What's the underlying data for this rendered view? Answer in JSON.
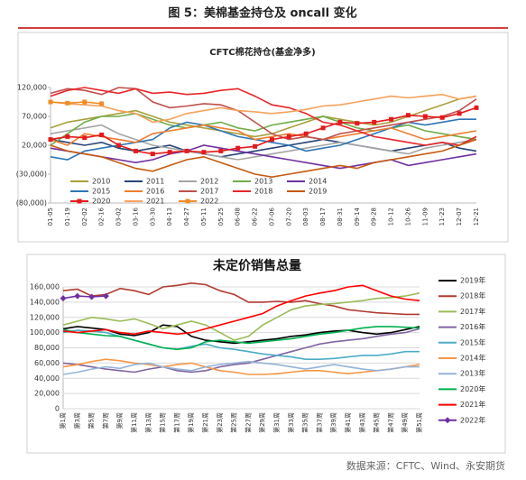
{
  "header": {
    "title": "图 5：美棉基金持仓及 oncall 变化"
  },
  "source": "数据来源：CFTC、Wind、永安期货",
  "chart_data": [
    {
      "type": "line",
      "title": "CFTC棉花持仓(基金净多)",
      "grid": false,
      "categories": [
        "01-05",
        "01-19",
        "02-02",
        "02-16",
        "03-02",
        "03-16",
        "03-30",
        "04-13",
        "04-27",
        "05-11",
        "05-25",
        "06-08",
        "06-22",
        "07-06",
        "07-20",
        "08-03",
        "08-17",
        "08-31",
        "09-14",
        "09-28",
        "10-12",
        "10-26",
        "11-09",
        "11-23",
        "12-07",
        "12-21"
      ],
      "ylim": [
        -80000,
        120000
      ],
      "yticks": [
        {
          "value": -80000,
          "label": "(80,000)"
        },
        {
          "value": -30000,
          "label": "(30,000)"
        },
        {
          "value": 20000,
          "label": "20,000"
        },
        {
          "value": 70000,
          "label": "70,000"
        },
        {
          "value": 120000,
          "label": "120,000"
        }
      ],
      "series": [
        {
          "name": "2010",
          "color": "#a89f3c",
          "values": [
            50000,
            60000,
            65000,
            70000,
            75000,
            80000,
            70000,
            60000,
            55000,
            50000,
            45000,
            40000,
            35000,
            40000,
            50000,
            60000,
            70000,
            65000,
            60000,
            55000,
            60000,
            70000,
            80000,
            90000,
            100000,
            105000
          ]
        },
        {
          "name": "2011",
          "color": "#264478",
          "values": [
            30000,
            25000,
            20000,
            25000,
            15000,
            10000,
            15000,
            20000,
            10000,
            5000,
            0,
            5000,
            10000,
            15000,
            20000,
            25000,
            30000,
            25000,
            20000,
            15000,
            10000,
            15000,
            20000,
            25000,
            15000,
            10000
          ]
        },
        {
          "name": "2012",
          "color": "#a5a5a5",
          "values": [
            40000,
            45000,
            50000,
            55000,
            40000,
            30000,
            20000,
            15000,
            10000,
            5000,
            0,
            -5000,
            0,
            5000,
            10000,
            15000,
            20000,
            25000,
            20000,
            15000,
            10000,
            5000,
            15000,
            20000,
            25000,
            30000
          ]
        },
        {
          "name": "2013",
          "color": "#70ad47",
          "values": [
            20000,
            40000,
            60000,
            70000,
            70000,
            75000,
            65000,
            55000,
            50000,
            55000,
            60000,
            50000,
            45000,
            55000,
            60000,
            65000,
            70000,
            60000,
            50000,
            45000,
            50000,
            55000,
            45000,
            40000,
            35000,
            30000
          ]
        },
        {
          "name": "2014",
          "color": "#7030a0",
          "values": [
            15000,
            10000,
            5000,
            0,
            -5000,
            -10000,
            -5000,
            5000,
            10000,
            20000,
            15000,
            10000,
            5000,
            0,
            -5000,
            -10000,
            -15000,
            -20000,
            -15000,
            -10000,
            -5000,
            -15000,
            -10000,
            -5000,
            0,
            5000
          ]
        },
        {
          "name": "2015",
          "color": "#2e75b6",
          "values": [
            0,
            -5000,
            10000,
            15000,
            20000,
            25000,
            30000,
            50000,
            60000,
            55000,
            45000,
            35000,
            30000,
            25000,
            20000,
            10000,
            15000,
            20000,
            30000,
            40000,
            50000,
            60000,
            55000,
            60000,
            65000,
            65000
          ]
        },
        {
          "name": "2016",
          "color": "#ed7d31",
          "values": [
            30000,
            20000,
            40000,
            35000,
            30000,
            25000,
            40000,
            45000,
            50000,
            55000,
            50000,
            45000,
            30000,
            35000,
            40000,
            35000,
            30000,
            35000,
            40000,
            45000,
            50000,
            40000,
            30000,
            35000,
            40000,
            45000
          ]
        },
        {
          "name": "2017",
          "color": "#c0504d",
          "values": [
            110000,
            118000,
            115000,
            108000,
            120000,
            118000,
            95000,
            85000,
            88000,
            92000,
            90000,
            80000,
            60000,
            40000,
            30000,
            35000,
            30000,
            40000,
            45000,
            50000,
            55000,
            60000,
            65000,
            70000,
            80000,
            100000
          ]
        },
        {
          "name": "2018",
          "color": "#e8262a",
          "values": [
            105000,
            115000,
            120000,
            115000,
            110000,
            118000,
            110000,
            112000,
            108000,
            110000,
            115000,
            118000,
            105000,
            90000,
            85000,
            75000,
            60000,
            55000,
            45000,
            35000,
            30000,
            25000,
            20000,
            25000,
            20000,
            35000
          ]
        },
        {
          "name": "2019",
          "color": "#c55a11",
          "values": [
            20000,
            10000,
            5000,
            0,
            -10000,
            -20000,
            -25000,
            -15000,
            -5000,
            0,
            -10000,
            -20000,
            -30000,
            -35000,
            -30000,
            -25000,
            -20000,
            -15000,
            -20000,
            -10000,
            -5000,
            0,
            5000,
            10000,
            20000,
            30000
          ]
        },
        {
          "name": "2020",
          "color": "#e31a1c",
          "marker": "square",
          "values": [
            30000,
            35000,
            33000,
            38000,
            20000,
            10000,
            5000,
            8000,
            10000,
            8000,
            10000,
            15000,
            18000,
            30000,
            35000,
            40000,
            50000,
            60000,
            58000,
            60000,
            65000,
            72000,
            70000,
            68000,
            75000,
            85000
          ]
        },
        {
          "name": "2021",
          "color": "#f4a25c",
          "values": [
            95000,
            92000,
            90000,
            88000,
            80000,
            75000,
            60000,
            65000,
            75000,
            80000,
            85000,
            80000,
            78000,
            75000,
            78000,
            82000,
            88000,
            90000,
            95000,
            100000,
            105000,
            102000,
            105000,
            108000,
            100000,
            105000
          ]
        },
        {
          "name": "2022",
          "color": "#f08c28",
          "marker": "square",
          "values": [
            95000,
            93000,
            95000,
            92000,
            null,
            null,
            null,
            null,
            null,
            null,
            null,
            null,
            null,
            null,
            null,
            null,
            null,
            null,
            null,
            null,
            null,
            null,
            null,
            null,
            null,
            null
          ]
        }
      ]
    },
    {
      "type": "line",
      "title": "未定价销售总量",
      "grid": true,
      "categories": [
        "第1周",
        "第3周",
        "第5周",
        "第7周",
        "第9周",
        "第11周",
        "第13周",
        "第15周",
        "第17周",
        "第19周",
        "第21周",
        "第23周",
        "第25周",
        "第27周",
        "第29周",
        "第31周",
        "第33周",
        "第35周",
        "第37周",
        "第39周",
        "第41周",
        "第43周",
        "第45周",
        "第47周",
        "第49周",
        "第51周"
      ],
      "ylim": [
        0,
        160000
      ],
      "yticks": [
        0,
        {
          "value": 20000,
          "label": "20,000"
        },
        {
          "value": 40000,
          "label": "40,000"
        },
        {
          "value": 60000,
          "label": "60,000"
        },
        {
          "value": 80000,
          "label": "80,000"
        },
        {
          "value": 100000,
          "label": "100,000"
        },
        {
          "value": 120000,
          "label": "120,000"
        },
        {
          "value": 140000,
          "label": "140,000"
        },
        {
          "value": 160000,
          "label": "160,000"
        }
      ],
      "series": [
        {
          "name": "2019年",
          "color": "#000000",
          "values": [
            105000,
            108000,
            106000,
            104000,
            98000,
            96000,
            100000,
            110000,
            108000,
            95000,
            90000,
            88000,
            86000,
            88000,
            90000,
            92000,
            95000,
            97000,
            100000,
            102000,
            103000,
            100000,
            98000,
            100000,
            104000,
            108000
          ]
        },
        {
          "name": "2018年",
          "color": "#b03a30",
          "values": [
            155000,
            157000,
            148000,
            150000,
            158000,
            155000,
            150000,
            160000,
            162000,
            165000,
            163000,
            155000,
            150000,
            140000,
            140000,
            141000,
            140000,
            142000,
            138000,
            135000,
            130000,
            128000,
            126000,
            125000,
            124000,
            124000
          ]
        },
        {
          "name": "2017年",
          "color": "#9bbb59",
          "values": [
            110000,
            115000,
            120000,
            118000,
            115000,
            118000,
            112000,
            105000,
            110000,
            115000,
            110000,
            100000,
            90000,
            95000,
            110000,
            120000,
            130000,
            135000,
            137000,
            138000,
            140000,
            142000,
            145000,
            146000,
            148000,
            152000
          ]
        },
        {
          "name": "2016年",
          "color": "#8064a2",
          "values": [
            60000,
            58000,
            55000,
            52000,
            50000,
            48000,
            52000,
            55000,
            50000,
            48000,
            50000,
            55000,
            58000,
            60000,
            65000,
            70000,
            75000,
            80000,
            85000,
            88000,
            90000,
            92000,
            95000,
            98000,
            100000,
            105000
          ]
        },
        {
          "name": "2015年",
          "color": "#4bacc6",
          "values": [
            100000,
            103000,
            102000,
            100000,
            95000,
            90000,
            85000,
            80000,
            78000,
            82000,
            85000,
            80000,
            78000,
            75000,
            72000,
            70000,
            68000,
            65000,
            65000,
            66000,
            68000,
            70000,
            70000,
            72000,
            75000,
            75000
          ]
        },
        {
          "name": "2014年",
          "color": "#f79646",
          "values": [
            55000,
            58000,
            62000,
            65000,
            63000,
            60000,
            58000,
            55000,
            58000,
            60000,
            55000,
            50000,
            48000,
            45000,
            45000,
            46000,
            48000,
            50000,
            50000,
            48000,
            46000,
            48000,
            50000,
            52000,
            55000,
            58000
          ]
        },
        {
          "name": "2013年",
          "color": "#95b3d7",
          "values": [
            45000,
            48000,
            52000,
            55000,
            53000,
            58000,
            60000,
            55000,
            52000,
            50000,
            55000,
            58000,
            60000,
            62000,
            60000,
            58000,
            55000,
            52000,
            55000,
            58000,
            55000,
            52000,
            50000,
            52000,
            55000,
            55000
          ]
        },
        {
          "name": "2020年",
          "color": "#00b050",
          "values": [
            104000,
            100000,
            98000,
            96000,
            95000,
            90000,
            85000,
            80000,
            78000,
            80000,
            88000,
            90000,
            88000,
            86000,
            88000,
            90000,
            92000,
            95000,
            98000,
            100000,
            103000,
            106000,
            108000,
            108000,
            107000,
            106000
          ]
        },
        {
          "name": "2021年",
          "color": "#ff0000",
          "values": [
            102000,
            100000,
            102000,
            104000,
            100000,
            98000,
            102000,
            100000,
            98000,
            100000,
            105000,
            110000,
            115000,
            120000,
            125000,
            135000,
            142000,
            148000,
            152000,
            155000,
            160000,
            162000,
            155000,
            148000,
            144000,
            142000
          ]
        },
        {
          "name": "2022年",
          "color": "#7030a0",
          "marker": "diamond",
          "values": [
            145000,
            148000,
            147000,
            148000,
            null,
            null,
            null,
            null,
            null,
            null,
            null,
            null,
            null,
            null,
            null,
            null,
            null,
            null,
            null,
            null,
            null,
            null,
            null,
            null,
            null,
            null
          ]
        }
      ]
    }
  ]
}
